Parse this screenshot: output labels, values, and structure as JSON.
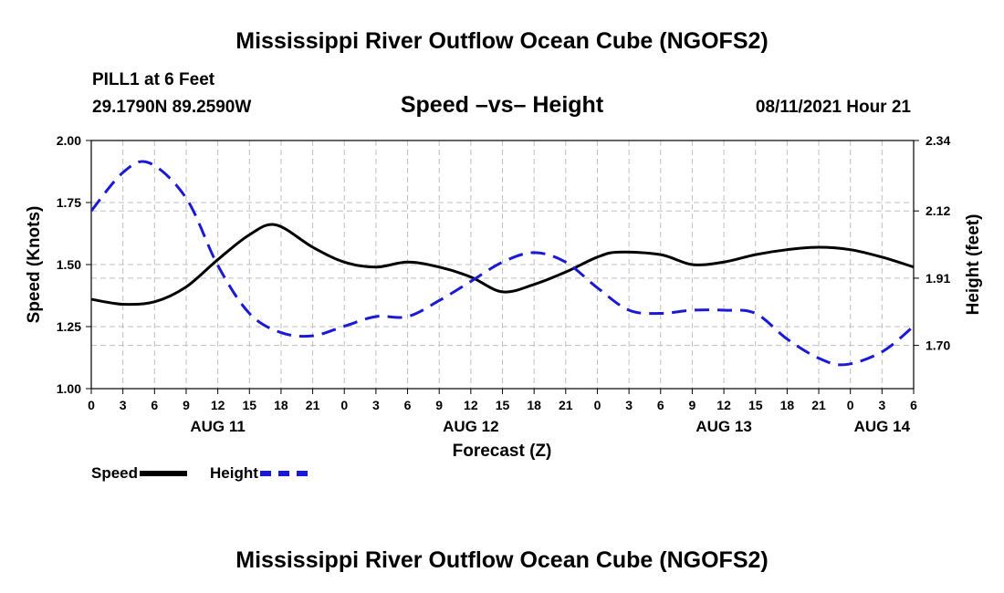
{
  "header": {
    "title": "Mississippi River Outflow Ocean Cube (NGOFS2)",
    "station": "PILL1 at 6 Feet",
    "coords": "29.1790N  89.2590W",
    "subtitle": "Speed –vs– Height",
    "datetime": "08/11/2021 Hour 21"
  },
  "footer": {
    "title": "Mississippi River Outflow Ocean Cube (NGOFS2)"
  },
  "legend": {
    "speed_label": "Speed",
    "height_label": "Height"
  },
  "chart_data": {
    "type": "line",
    "xlabel": "Forecast (Z)",
    "ylabel_left": "Speed (Knots)",
    "ylabel_right": "Height (feet)",
    "x_range_hours": [
      0,
      78
    ],
    "x_tick_step_hours": 3,
    "x_tick_labels": [
      "0",
      "3",
      "6",
      "9",
      "12",
      "15",
      "18",
      "21",
      "0",
      "3",
      "6",
      "9",
      "12",
      "15",
      "18",
      "21",
      "0",
      "3",
      "6",
      "9",
      "12",
      "15",
      "18",
      "21",
      "0",
      "3",
      "6"
    ],
    "date_labels": [
      {
        "hour": 12,
        "label": "AUG 11"
      },
      {
        "hour": 36,
        "label": "AUG 12"
      },
      {
        "hour": 60,
        "label": "AUG 13"
      },
      {
        "hour": 75,
        "label": "AUG 14"
      }
    ],
    "left_axis": {
      "min": 1.0,
      "max": 2.0,
      "ticks": [
        "1.00",
        "1.25",
        "1.50",
        "1.75",
        "2.00"
      ]
    },
    "right_axis": {
      "min": 1.565,
      "max": 2.34,
      "ticks": [
        "1.70",
        "1.91",
        "2.12",
        "2.34"
      ]
    },
    "grid": true,
    "colors": {
      "speed": "#000000",
      "height": "#1a1ad6",
      "grid": "#bfbfbf"
    },
    "series": [
      {
        "name": "Speed",
        "axis": "left",
        "style": "solid",
        "x": [
          0,
          3,
          6,
          9,
          12,
          15,
          17.5,
          21,
          24,
          27,
          30,
          33,
          36,
          39,
          42,
          45,
          48,
          50,
          54,
          57,
          60,
          63,
          66,
          69,
          72,
          75,
          78
        ],
        "values": [
          1.36,
          1.34,
          1.35,
          1.41,
          1.52,
          1.62,
          1.66,
          1.57,
          1.51,
          1.49,
          1.51,
          1.49,
          1.45,
          1.39,
          1.42,
          1.47,
          1.53,
          1.55,
          1.54,
          1.5,
          1.51,
          1.54,
          1.56,
          1.57,
          1.56,
          1.53,
          1.49
        ]
      },
      {
        "name": "Height",
        "axis": "right",
        "style": "dashed",
        "x": [
          0,
          3,
          5.5,
          9,
          12,
          15,
          18,
          21,
          24,
          27,
          30,
          33,
          36,
          39,
          42,
          45,
          48,
          51,
          54,
          57,
          60,
          63,
          66,
          69,
          71.5,
          75,
          78
        ],
        "values": [
          2.12,
          2.24,
          2.27,
          2.16,
          1.95,
          1.8,
          1.74,
          1.73,
          1.76,
          1.79,
          1.79,
          1.84,
          1.9,
          1.96,
          1.99,
          1.96,
          1.88,
          1.81,
          1.8,
          1.81,
          1.81,
          1.8,
          1.72,
          1.66,
          1.64,
          1.68,
          1.76
        ]
      }
    ]
  }
}
